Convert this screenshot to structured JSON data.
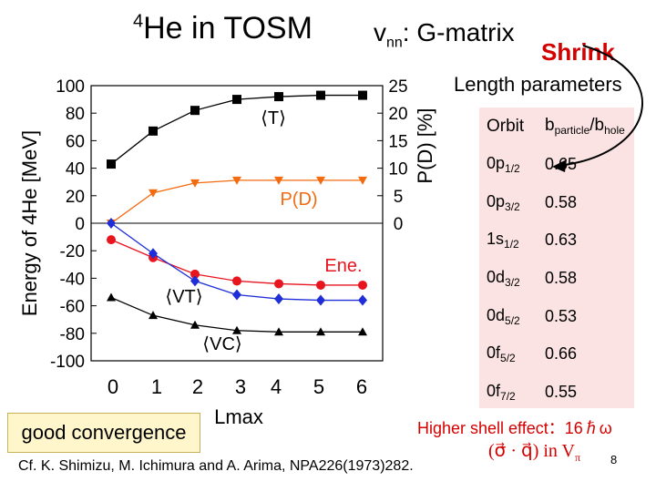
{
  "header": {
    "title_sup": "4",
    "title_main": "He in TOSM",
    "vnn_v": "v",
    "vnn_sub": "nn",
    "vnn_rest": ": G-matrix",
    "shrink": "Shrink",
    "length_params": "Length parameters"
  },
  "orbit_table": {
    "header": {
      "orbit": "Orbit",
      "b_particle": "b",
      "b_particle_sub": "particle",
      "slash": "/",
      "b_hole": "b",
      "b_hole_sub": "hole"
    },
    "rows": [
      {
        "orbit": "0p",
        "sub": "1/2",
        "value": "0.65"
      },
      {
        "orbit": "0p",
        "sub": "3/2",
        "value": "0.58"
      },
      {
        "orbit": "1s",
        "sub": "1/2",
        "value": "0.63"
      },
      {
        "orbit": "0d",
        "sub": "3/2",
        "value": "0.58"
      },
      {
        "orbit": "0d",
        "sub": "5/2",
        "value": "0.53"
      },
      {
        "orbit": "0f",
        "sub": "5/2",
        "value": "0.66"
      },
      {
        "orbit": "0f",
        "sub": "7/2",
        "value": "0.55"
      }
    ]
  },
  "footer": {
    "good_convergence": "good convergence",
    "higher_shell": "Higher shell effect：16ℏω",
    "sigma_q": "(σ⃗ · q⃗) in V",
    "sigma_q_sub": "π",
    "citation": "Cf.  K. Shimizu, M. Ichimura and A. Arima, NPA226(1973)282.",
    "page": "8"
  },
  "colors": {
    "black": "#000000",
    "orange": "#f26b0f",
    "red": "#e8141e",
    "blue": "#1f2ed6",
    "panel": "#fbe3e3",
    "accent": "#d40000"
  },
  "chart_data": {
    "type": "line",
    "x": [
      0,
      1,
      2,
      3,
      4,
      5,
      6
    ],
    "xlabel": "Lmax",
    "ylabel": "Energy of 4He [MeV]",
    "ylim": [
      -100,
      100
    ],
    "yticks": [
      -100,
      -80,
      -60,
      -40,
      -20,
      0,
      20,
      40,
      60,
      80,
      100
    ],
    "right_axis": {
      "label": "P(D) [%]",
      "ylim": [
        -25,
        25
      ],
      "ticks": [
        0,
        5,
        10,
        15,
        20,
        25
      ]
    },
    "series": [
      {
        "name": "⟨T⟩",
        "axis": "left",
        "marker": "square",
        "color": "#000000",
        "values": [
          43,
          67,
          82,
          90,
          92,
          93,
          93
        ]
      },
      {
        "name": "P(D)",
        "axis": "right",
        "marker": "triangle-down",
        "color": "#f26b0f",
        "values": [
          0,
          5.5,
          7.3,
          7.8,
          7.8,
          7.8,
          7.8
        ]
      },
      {
        "name": "Ene.",
        "axis": "left",
        "marker": "circle",
        "color": "#e8141e",
        "values": [
          -12,
          -25,
          -37,
          -42,
          -44,
          -45,
          -45
        ]
      },
      {
        "name": "⟨VT⟩",
        "axis": "left",
        "marker": "diamond",
        "color": "#1f2ed6",
        "values": [
          0,
          -22,
          -42,
          -52,
          -55,
          -56,
          -56
        ]
      },
      {
        "name": "⟨VC⟩",
        "axis": "left",
        "marker": "triangle-up",
        "color": "#000000",
        "values": [
          -54,
          -67,
          -74,
          -78,
          -79,
          -79,
          -79
        ]
      }
    ]
  }
}
